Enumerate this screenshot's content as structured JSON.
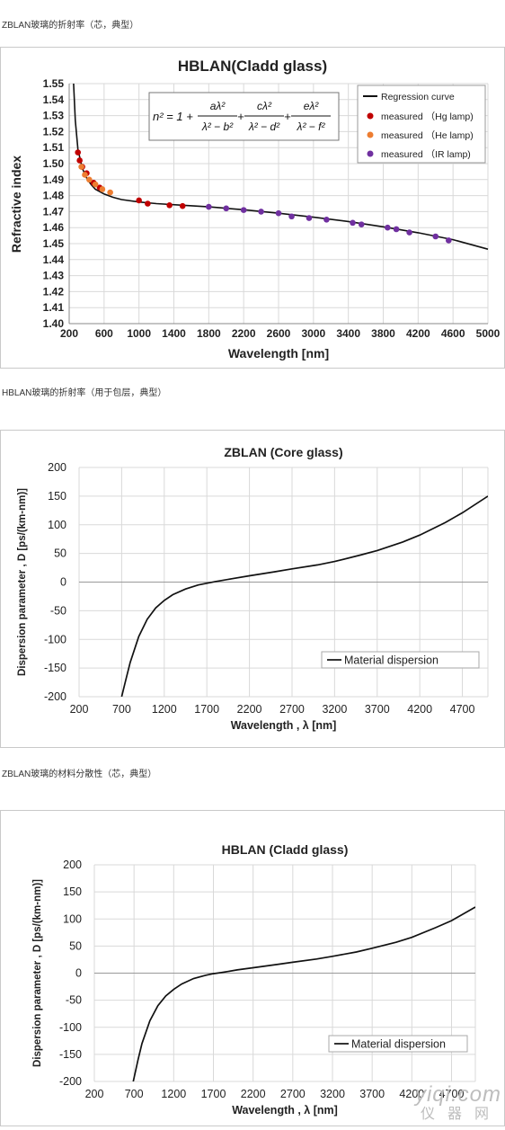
{
  "captions": [
    "ZBLAN玻璃的折射率（芯，典型）",
    "HBLAN玻璃的折射率（用于包层，典型）",
    "ZBLAN玻璃的材料分散性（芯，典型）"
  ],
  "watermark": {
    "line1": "yiqi.com",
    "line2": "仪器网"
  },
  "colors": {
    "hg": "#c00000",
    "he": "#ed7d31",
    "ir": "#7030a0",
    "curve": "#111111",
    "grid": "#d9d9d9"
  },
  "chart_data": [
    {
      "type": "scatter",
      "title": "HBLAN(Cladd glass)",
      "xlabel": "Wavelength [nm]",
      "ylabel": "Refractive index",
      "xlim": [
        200,
        5000
      ],
      "ylim": [
        1.4,
        1.55
      ],
      "xticks": [
        200,
        600,
        1000,
        1400,
        1800,
        2200,
        2600,
        3000,
        3400,
        3800,
        4200,
        4600,
        5000
      ],
      "yticks": [
        1.4,
        1.41,
        1.42,
        1.43,
        1.44,
        1.45,
        1.46,
        1.47,
        1.48,
        1.49,
        1.5,
        1.51,
        1.52,
        1.53,
        1.54,
        1.55
      ],
      "grid": true,
      "legend_position": "top-right",
      "formula": {
        "lhs": "n² = 1 +",
        "terms": [
          {
            "num": "aλ²",
            "den": "λ² − b²"
          },
          {
            "num": "cλ²",
            "den": "λ² − d²"
          },
          {
            "num": "eλ²",
            "den": "λ² − f²"
          }
        ],
        "plus": "+"
      },
      "series": [
        {
          "name": "Regression curve",
          "kind": "line",
          "x": [
            250,
            270,
            300,
            350,
            400,
            450,
            500,
            600,
            700,
            800,
            1000,
            1200,
            1500,
            1800,
            2200,
            2600,
            3000,
            3400,
            3800,
            4200,
            4600,
            5000
          ],
          "y": [
            1.55,
            1.527,
            1.509,
            1.497,
            1.491,
            1.487,
            1.484,
            1.481,
            1.479,
            1.4775,
            1.476,
            1.475,
            1.474,
            1.473,
            1.4712,
            1.469,
            1.4665,
            1.4638,
            1.4605,
            1.4568,
            1.4525,
            1.4465
          ]
        },
        {
          "name": "measured （Hg lamp)",
          "kind": "points",
          "color": "#c00000",
          "x": [
            300,
            320,
            350,
            400,
            480,
            550,
            1000,
            1100,
            1350,
            1500
          ],
          "y": [
            1.507,
            1.502,
            1.498,
            1.494,
            1.488,
            1.485,
            1.477,
            1.475,
            1.474,
            1.4735
          ]
        },
        {
          "name": "measured （He lamp)",
          "kind": "points",
          "color": "#ed7d31",
          "x": [
            340,
            380,
            430,
            500,
            580,
            670
          ],
          "y": [
            1.498,
            1.493,
            1.49,
            1.487,
            1.484,
            1.482
          ]
        },
        {
          "name": "measured （IR lamp)",
          "kind": "points",
          "color": "#7030a0",
          "x": [
            1800,
            2000,
            2200,
            2400,
            2600,
            2750,
            2950,
            3150,
            3450,
            3550,
            3850,
            3950,
            4100,
            4400,
            4550
          ],
          "y": [
            1.473,
            1.472,
            1.471,
            1.47,
            1.469,
            1.467,
            1.466,
            1.465,
            1.463,
            1.462,
            1.46,
            1.459,
            1.457,
            1.4545,
            1.452
          ]
        }
      ]
    },
    {
      "type": "line",
      "title": "ZBLAN (Core glass)",
      "xlabel": "Wavelength , λ [nm]",
      "ylabel": "Dispersion parameter , D [ps/(km-nm)]",
      "xlim": [
        200,
        5000
      ],
      "ylim": [
        -200,
        200
      ],
      "xticks": [
        200,
        700,
        1200,
        1700,
        2200,
        2700,
        3200,
        3700,
        4200,
        4700
      ],
      "yticks": [
        200,
        150,
        100,
        50,
        0,
        -50,
        -100,
        -150,
        -200
      ],
      "grid": true,
      "legend_position": "bottom-right",
      "series": [
        {
          "name": "Material dispersion",
          "x": [
            700,
            750,
            800,
            900,
            1000,
            1100,
            1200,
            1300,
            1450,
            1600,
            1700,
            1800,
            2000,
            2200,
            2500,
            2700,
            3000,
            3200,
            3500,
            3700,
            4000,
            4200,
            4500,
            4700,
            5000
          ],
          "y": [
            -200,
            -170,
            -140,
            -95,
            -65,
            -45,
            -32,
            -22,
            -12,
            -5,
            -2,
            1,
            6,
            11,
            18,
            23,
            30,
            36,
            47,
            55,
            70,
            82,
            104,
            121,
            150
          ]
        }
      ]
    },
    {
      "type": "line",
      "title": "HBLAN (Cladd glass)",
      "xlabel": "Wavelength , λ [nm]",
      "ylabel": "Dispersion parameter , D [ps/(km-nm)]",
      "xlim": [
        200,
        5000
      ],
      "ylim": [
        -200,
        200
      ],
      "xticks": [
        200,
        700,
        1200,
        1700,
        2200,
        2700,
        3200,
        3700,
        4200,
        4700
      ],
      "yticks": [
        200,
        150,
        100,
        50,
        0,
        -50,
        -100,
        -150,
        -200
      ],
      "grid": true,
      "legend_position": "bottom-right",
      "series": [
        {
          "name": "Material dispersion",
          "x": [
            690,
            750,
            800,
            900,
            1000,
            1100,
            1200,
            1300,
            1450,
            1600,
            1700,
            1800,
            2000,
            2200,
            2500,
            2700,
            3000,
            3200,
            3500,
            3700,
            4000,
            4200,
            4500,
            4700,
            5000
          ],
          "y": [
            -200,
            -160,
            -130,
            -88,
            -60,
            -42,
            -30,
            -20,
            -10,
            -4,
            -1,
            1,
            6,
            10,
            16,
            20,
            26,
            31,
            39,
            46,
            57,
            66,
            84,
            97,
            122
          ]
        }
      ]
    }
  ]
}
